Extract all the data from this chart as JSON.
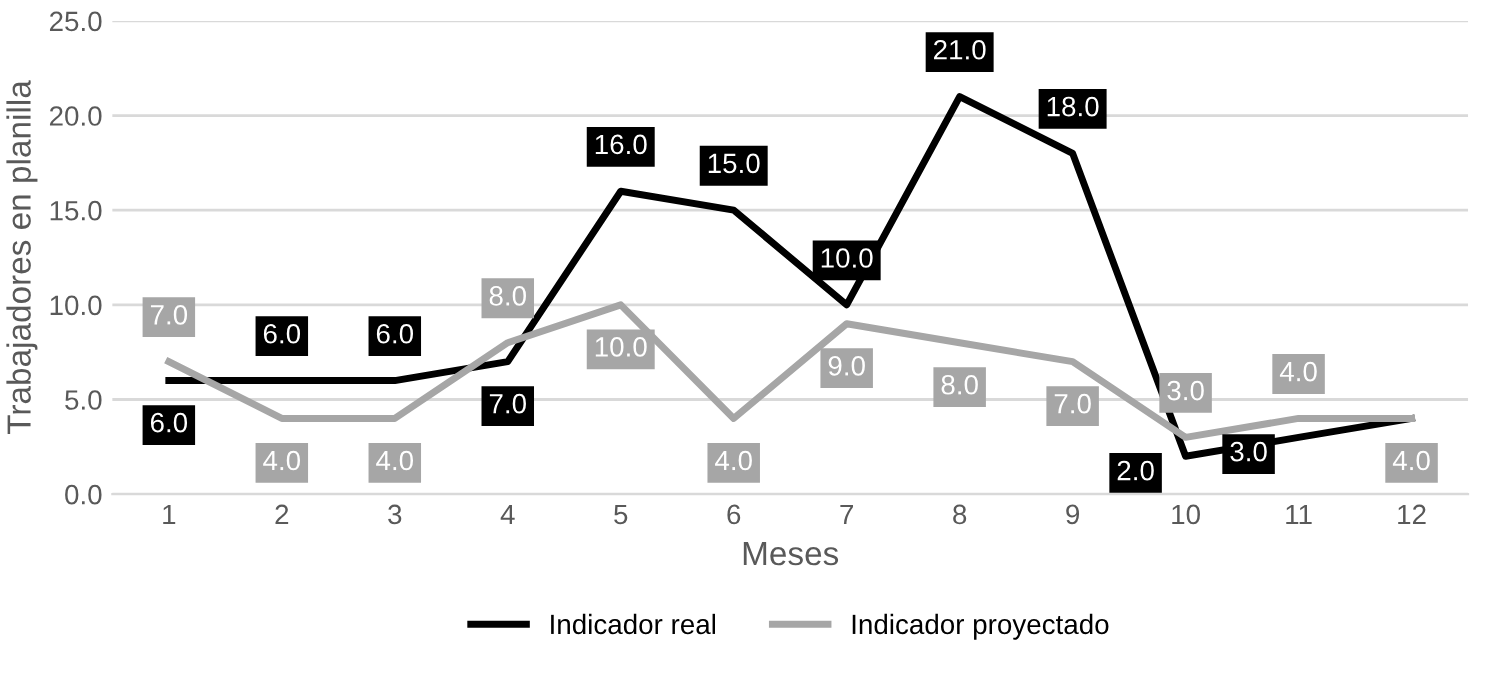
{
  "chart_data": {
    "type": "line",
    "xlabel": "Meses",
    "ylabel": "Trabajadores en planilla",
    "categories": [
      "1",
      "2",
      "3",
      "4",
      "5",
      "6",
      "7",
      "8",
      "9",
      "10",
      "11",
      "12"
    ],
    "series": [
      {
        "name": "Indicador real",
        "color": "#000000",
        "values": [
          6,
          6,
          6,
          7,
          16,
          15,
          10,
          21,
          18,
          2,
          3,
          4
        ],
        "value_labels": [
          "6.0",
          "6.0",
          "6.0",
          "7.0",
          "16.0",
          "15.0",
          "10.0",
          "21.0",
          "18.0",
          "2.0",
          "3.0",
          null
        ]
      },
      {
        "name": "Indicador proyectado",
        "color": "#a6a6a6",
        "values": [
          7,
          4,
          4,
          8,
          10,
          4,
          9,
          8,
          7,
          3,
          4,
          4
        ],
        "value_labels": [
          "7.0",
          "4.0",
          "4.0",
          "8.0",
          "10.0",
          "4.0",
          "9.0",
          "8.0",
          "7.0",
          "3.0",
          "4.0",
          "4.0"
        ]
      }
    ],
    "ylim": [
      0,
      25
    ],
    "yticks": [
      {
        "value": 0,
        "label": "0.0"
      },
      {
        "value": 5,
        "label": "5.0"
      },
      {
        "value": 10,
        "label": "10.0"
      },
      {
        "value": 15,
        "label": "15.0"
      },
      {
        "value": 20,
        "label": "20.0"
      },
      {
        "value": 25,
        "label": "25.0"
      }
    ],
    "grid": "y",
    "legend": "bottom",
    "marker": "none",
    "line_style": "solid"
  }
}
